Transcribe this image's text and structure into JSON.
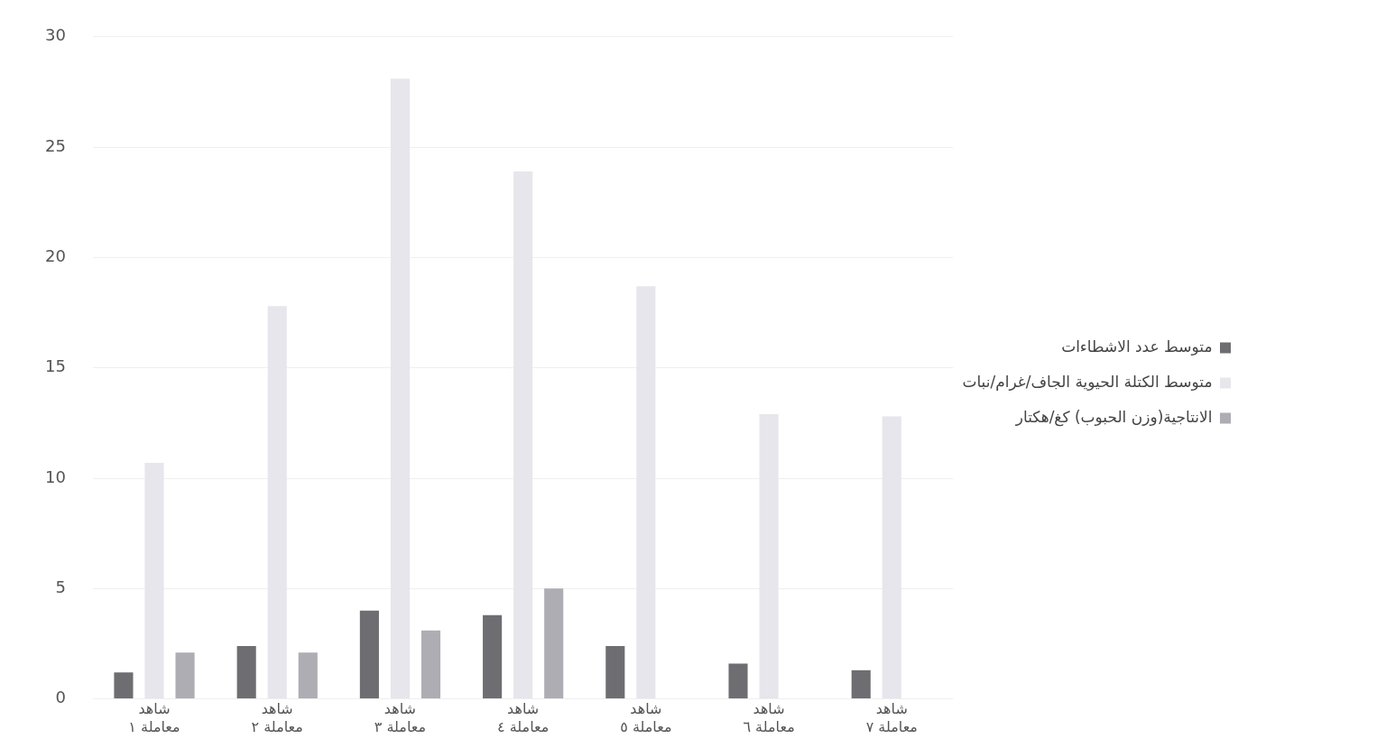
{
  "chart_data": {
    "type": "bar",
    "categories": [
      "شاهد\nمعاملة ١",
      "شاهد\nمعاملة ٢",
      "شاهد\nمعاملة ٣",
      "شاهد\nمعاملة ٤",
      "شاهد\nمعاملة ٥",
      "شاهد\nمعاملة ٦",
      "شاهد\nمعاملة ٧"
    ],
    "series": [
      {
        "name": "متوسط عدد الاشطاءات",
        "color": "#6e6e72",
        "values": [
          1.2,
          2.4,
          4.0,
          3.8,
          2.4,
          1.6,
          1.3
        ]
      },
      {
        "name": "متوسط الكتلة الحيوية الجاف/غرام/نبات",
        "color": "#e6e6ec",
        "values": [
          10.7,
          17.8,
          28.1,
          23.9,
          18.7,
          12.9,
          12.8
        ]
      },
      {
        "name": "الانتاجية(وزن الحبوب) كغ/هكتار",
        "color": "#adadb3",
        "values": [
          2.1,
          2.1,
          3.1,
          5.0,
          null,
          null,
          null
        ]
      }
    ],
    "ylim": [
      0,
      30
    ],
    "yticks": [
      0,
      5,
      10,
      15,
      20,
      25,
      30
    ],
    "grid": "y",
    "legend": "right"
  }
}
